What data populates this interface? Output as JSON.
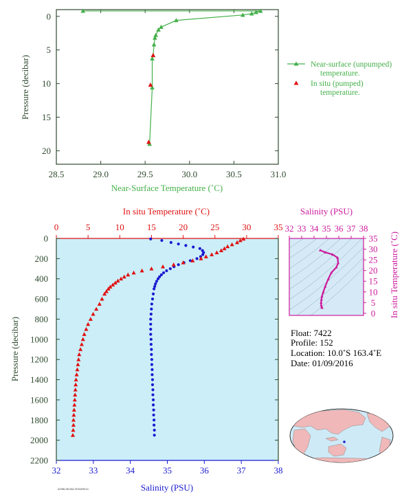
{
  "colors": {
    "near_surface": "#44b04a",
    "in_situ_temp": "#e01010",
    "salinity": "#1a1ad0",
    "magenta": "#cc1a9c",
    "axis_dark": "#2f4a2f",
    "panel_bg": "#cbeef8",
    "tsbox_bg": "#d5eaf6",
    "map_ocean": "#cfeaf7",
    "map_land": "#f0b8b8"
  },
  "top_chart": {
    "xlabel": "Near-Surface Temperature (˚C)",
    "ylabel": "Pressure (decibar)",
    "xticks": [
      "28.5",
      "29.0",
      "29.5",
      "30.0",
      "30.5",
      "31.0"
    ],
    "yticks": [
      "0",
      "5",
      "10",
      "15",
      "20"
    ],
    "legend": [
      {
        "label_line1": "Near-surface (unpumped)",
        "label_line2": "temperature."
      },
      {
        "label_line1": "In situ (pumped)",
        "label_line2": "temperature."
      }
    ]
  },
  "bottom_chart": {
    "top_axis_label": "In situ Temperature (˚C)",
    "bottom_axis_label": "Salinity (PSU)",
    "ylabel": "Pressure (decibar)",
    "temp_ticks": [
      "0",
      "5",
      "10",
      "15",
      "20",
      "25",
      "30",
      "35"
    ],
    "sal_ticks": [
      "32",
      "33",
      "34",
      "35",
      "36",
      "37",
      "38"
    ],
    "yticks": [
      "0",
      "200",
      "400",
      "600",
      "800",
      "1000",
      "1200",
      "1400",
      "1600",
      "1800",
      "2000",
      "2200"
    ]
  },
  "ts_chart": {
    "top_label": "Salinity (PSU)",
    "right_label": "In situ Temperature (˚C)",
    "sal_ticks": [
      "32",
      "33",
      "34",
      "35",
      "36",
      "37",
      "38"
    ],
    "temp_ticks": [
      "0",
      "5",
      "10",
      "15",
      "20",
      "25",
      "30",
      "35"
    ]
  },
  "info": {
    "float": "Float:  7422",
    "profile": "Profile:  152",
    "location": "Location:  10.0˚S  163.4˚E",
    "date": "Date:  01/09/2016"
  },
  "footer_code": "AOML/NOAA 2016/09/14",
  "chart_data": [
    {
      "type": "line",
      "title": "",
      "xlabel": "Near-Surface Temperature (˚C)",
      "ylabel": "Pressure (decibar)",
      "xlim": [
        28.5,
        31.0
      ],
      "ylim": [
        22,
        -1
      ],
      "y_inverted": true,
      "legend_position": "right",
      "series": [
        {
          "name": "Near-surface (unpumped) temperature.",
          "marker": "triangle",
          "points": [
            [
              28.8,
              -0.8
            ],
            [
              30.8,
              -0.8
            ],
            [
              30.75,
              -0.6
            ],
            [
              30.7,
              -0.4
            ],
            [
              30.6,
              -0.2
            ],
            [
              29.85,
              0.6
            ],
            [
              29.68,
              1.6
            ],
            [
              29.65,
              2.0
            ],
            [
              29.62,
              2.8
            ],
            [
              29.61,
              3.2
            ],
            [
              29.6,
              4.2
            ],
            [
              29.59,
              5.8
            ],
            [
              29.58,
              6.3
            ],
            [
              29.58,
              10.6
            ],
            [
              29.55,
              19.0
            ]
          ]
        },
        {
          "name": "In situ (pumped) temperature.",
          "marker": "triangle",
          "points": [
            [
              29.59,
              5.8
            ],
            [
              29.56,
              10.2
            ],
            [
              29.54,
              18.7
            ]
          ]
        }
      ]
    },
    {
      "type": "scatter",
      "title": "",
      "ylabel": "Pressure (decibar)",
      "ylim": [
        2200,
        0
      ],
      "y_inverted": true,
      "series": [
        {
          "name": "In situ Temperature (˚C)",
          "x_axis": "top",
          "xlim": [
            0,
            35
          ],
          "marker": "triangle",
          "points": [
            [
              29.5,
              5
            ],
            [
              29.0,
              20
            ],
            [
              28.5,
              40
            ],
            [
              27.7,
              60
            ],
            [
              27.0,
              80
            ],
            [
              26.5,
              100
            ],
            [
              26.0,
              120
            ],
            [
              25.3,
              140
            ],
            [
              24.5,
              160
            ],
            [
              23.6,
              180
            ],
            [
              22.8,
              200
            ],
            [
              21.5,
              220
            ],
            [
              20.0,
              240
            ],
            [
              18.5,
              260
            ],
            [
              16.8,
              280
            ],
            [
              15.0,
              300
            ],
            [
              13.5,
              320
            ],
            [
              12.2,
              340
            ],
            [
              11.3,
              360
            ],
            [
              10.7,
              380
            ],
            [
              10.2,
              400
            ],
            [
              9.7,
              420
            ],
            [
              9.3,
              440
            ],
            [
              8.9,
              460
            ],
            [
              8.5,
              480
            ],
            [
              8.2,
              500
            ],
            [
              7.9,
              525
            ],
            [
              7.6,
              550
            ],
            [
              7.2,
              600
            ],
            [
              6.8,
              650
            ],
            [
              6.3,
              700
            ],
            [
              5.8,
              750
            ],
            [
              5.4,
              800
            ],
            [
              5.0,
              850
            ],
            [
              4.7,
              900
            ],
            [
              4.4,
              950
            ],
            [
              4.2,
              1000
            ],
            [
              4.0,
              1050
            ],
            [
              3.8,
              1100
            ],
            [
              3.6,
              1150
            ],
            [
              3.5,
              1200
            ],
            [
              3.4,
              1250
            ],
            [
              3.3,
              1300
            ],
            [
              3.2,
              1350
            ],
            [
              3.1,
              1400
            ],
            [
              3.05,
              1450
            ],
            [
              3.0,
              1500
            ],
            [
              2.95,
              1550
            ],
            [
              2.9,
              1600
            ],
            [
              2.85,
              1650
            ],
            [
              2.8,
              1700
            ],
            [
              2.75,
              1750
            ],
            [
              2.7,
              1800
            ],
            [
              2.7,
              1850
            ],
            [
              2.65,
              1900
            ],
            [
              2.6,
              1950
            ]
          ]
        },
        {
          "name": "Salinity (PSU)",
          "x_axis": "bottom",
          "xlim": [
            32,
            38
          ],
          "marker": "circle",
          "points": [
            [
              34.55,
              5
            ],
            [
              34.85,
              20
            ],
            [
              35.1,
              40
            ],
            [
              35.3,
              55
            ],
            [
              35.5,
              70
            ],
            [
              35.7,
              85
            ],
            [
              35.88,
              100
            ],
            [
              35.95,
              120
            ],
            [
              35.98,
              140
            ],
            [
              35.96,
              160
            ],
            [
              35.9,
              180
            ],
            [
              35.8,
              200
            ],
            [
              35.62,
              220
            ],
            [
              35.45,
              240
            ],
            [
              35.3,
              260
            ],
            [
              35.18,
              280
            ],
            [
              35.08,
              300
            ],
            [
              34.98,
              320
            ],
            [
              34.9,
              340
            ],
            [
              34.84,
              360
            ],
            [
              34.79,
              380
            ],
            [
              34.75,
              400
            ],
            [
              34.71,
              425
            ],
            [
              34.68,
              450
            ],
            [
              34.66,
              475
            ],
            [
              34.64,
              500
            ],
            [
              34.62,
              550
            ],
            [
              34.6,
              600
            ],
            [
              34.58,
              650
            ],
            [
              34.57,
              700
            ],
            [
              34.56,
              750
            ],
            [
              34.55,
              800
            ],
            [
              34.55,
              850
            ],
            [
              34.55,
              900
            ],
            [
              34.55,
              950
            ],
            [
              34.56,
              1000
            ],
            [
              34.56,
              1050
            ],
            [
              34.57,
              1100
            ],
            [
              34.57,
              1150
            ],
            [
              34.58,
              1200
            ],
            [
              34.58,
              1250
            ],
            [
              34.59,
              1300
            ],
            [
              34.59,
              1350
            ],
            [
              34.6,
              1400
            ],
            [
              34.6,
              1450
            ],
            [
              34.61,
              1500
            ],
            [
              34.61,
              1550
            ],
            [
              34.62,
              1600
            ],
            [
              34.62,
              1650
            ],
            [
              34.63,
              1700
            ],
            [
              34.63,
              1750
            ],
            [
              34.64,
              1800
            ],
            [
              34.64,
              1850
            ],
            [
              34.65,
              1900
            ],
            [
              34.65,
              1950
            ]
          ]
        }
      ]
    },
    {
      "type": "scatter",
      "title": "",
      "xlabel": "Salinity (PSU)",
      "ylabel": "In situ Temperature (˚C)",
      "xlim": [
        32,
        38
      ],
      "ylim": [
        -1,
        35
      ],
      "series": [
        {
          "name": "",
          "marker": "triangle",
          "points": [
            [
              34.5,
              29.5
            ],
            [
              34.9,
              28.5
            ],
            [
              35.5,
              27.5
            ],
            [
              35.9,
              26.0
            ],
            [
              35.95,
              23.5
            ],
            [
              35.8,
              21.5
            ],
            [
              35.4,
              19.0
            ],
            [
              35.15,
              16.0
            ],
            [
              34.9,
              12.5
            ],
            [
              34.75,
              10.0
            ],
            [
              34.64,
              8.0
            ],
            [
              34.6,
              6.5
            ],
            [
              34.57,
              5.0
            ],
            [
              34.58,
              3.8
            ],
            [
              34.62,
              3.0
            ],
            [
              34.65,
              2.6
            ]
          ]
        }
      ]
    }
  ]
}
